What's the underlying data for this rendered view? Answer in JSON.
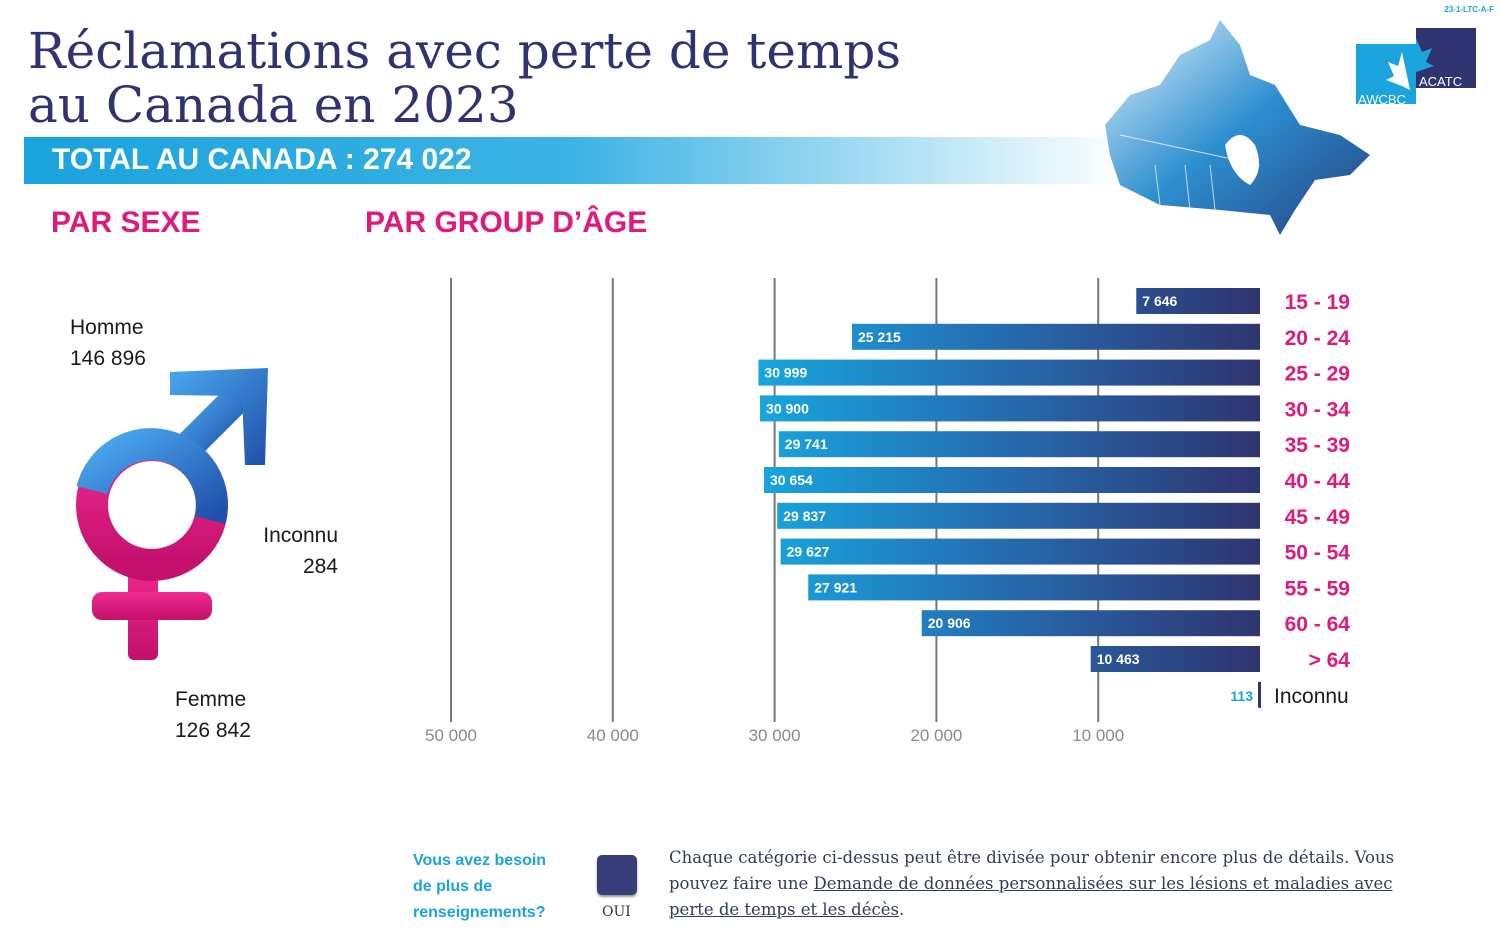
{
  "doc_code": "23-1-LTC-A-F",
  "title_line1": "Réclamations avec perte de temps",
  "title_line2": "au Canada en 2023",
  "total_banner": "TOTAL AU CANADA : 274 022",
  "logo": {
    "left": "AWCBC",
    "right": "ACATC"
  },
  "sex_section": {
    "heading": "PAR SEXE",
    "items": [
      {
        "label": "Homme",
        "value": "146 896"
      },
      {
        "label": "Inconnu",
        "value": "284"
      },
      {
        "label": "Femme",
        "value": "126 842"
      }
    ]
  },
  "colors": {
    "pink": "#e0197d",
    "navy": "#2f3470",
    "cyan": "#1aa3dc"
  },
  "chart_data": {
    "type": "bar",
    "title": "PAR GROUP D’ÂGE",
    "orientation": "horizontal-reversed",
    "categories": [
      "15 - 19",
      "20 - 24",
      "25 - 29",
      "30 - 34",
      "35 - 39",
      "40 - 44",
      "45 - 49",
      "50 - 54",
      "55 - 59",
      "60 - 64",
      "> 64",
      "Inconnu"
    ],
    "values": [
      7646,
      25215,
      30999,
      30900,
      29741,
      30654,
      29837,
      29627,
      27921,
      20906,
      10463,
      113
    ],
    "value_labels": [
      "7 646",
      "25 215",
      "30 999",
      "30 900",
      "29 741",
      "30 654",
      "29 837",
      "29 627",
      "27 921",
      "20 906",
      "10 463",
      "113"
    ],
    "xlim": [
      0,
      50000
    ],
    "ticks": [
      50000,
      40000,
      30000,
      20000,
      10000
    ],
    "tick_labels": [
      "50 000",
      "40 000",
      "30 000",
      "20 000",
      "10 000"
    ],
    "grid": true
  },
  "footer": {
    "question_lines": [
      "Vous avez besoin",
      "de plus de",
      "renseignements?"
    ],
    "button_label": "OUI",
    "text_before": "Chaque catégorie ci-dessus peut être divisée pour obtenir encore plus de détails. Vous pouvez faire une ",
    "link_text": "Demande de données personnalisées sur les lésions et maladies avec perte de temps et les décès",
    "text_after": "."
  }
}
